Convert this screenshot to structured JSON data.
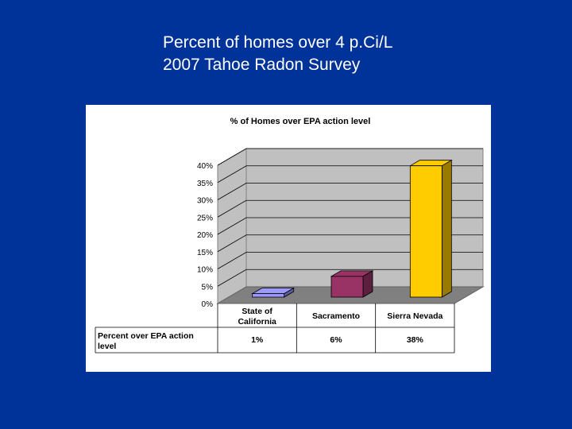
{
  "slide": {
    "title_line1": "Percent of homes over 4 p.Ci/L",
    "title_line2": "2007 Tahoe Radon Survey"
  },
  "colors": {
    "background": "#003399",
    "panel": "#ffffff",
    "plot_back": "#c0c0c0",
    "floor": "#808080"
  },
  "chart_data": {
    "type": "bar",
    "title": "% of Homes over EPA action level",
    "categories": [
      "State of California",
      "Sacramento",
      "Sierra Nevada"
    ],
    "category_lines": [
      [
        "State of",
        "California"
      ],
      [
        "Sacramento"
      ],
      [
        "Sierra Nevada"
      ]
    ],
    "series": [
      {
        "name": "Percent over EPA action level",
        "values": [
          1,
          6,
          38
        ],
        "value_labels": [
          "1%",
          "6%",
          "38%"
        ],
        "colors": [
          "#9999ff",
          "#993366",
          "#ffcc00"
        ]
      }
    ],
    "yticks": [
      "0%",
      "5%",
      "10%",
      "15%",
      "20%",
      "25%",
      "30%",
      "35%",
      "40%"
    ],
    "ylim": [
      0,
      40
    ],
    "grid": true,
    "data_table": {
      "row_label_lines": [
        "Percent over EPA action",
        "level"
      ]
    }
  }
}
